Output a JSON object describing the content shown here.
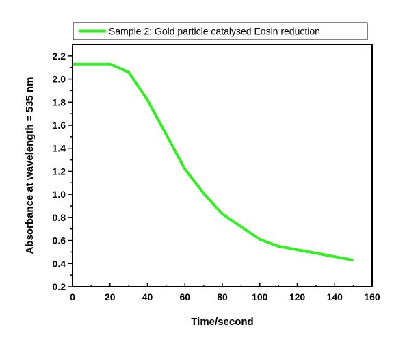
{
  "chart_data": {
    "type": "line",
    "xlabel": "Time/second",
    "ylabel": "Absorbance at wavelength = 535 nm",
    "xlim": [
      0,
      160
    ],
    "ylim": [
      0.2,
      2.3
    ],
    "xticks": [
      0,
      20,
      40,
      60,
      80,
      100,
      120,
      140,
      160
    ],
    "yticks": [
      0.2,
      0.4,
      0.6,
      0.8,
      1.0,
      1.2,
      1.4,
      1.6,
      1.8,
      2.0,
      2.2
    ],
    "xtick_labels": [
      "0",
      "20",
      "40",
      "60",
      "80",
      "100",
      "120",
      "140",
      "160"
    ],
    "ytick_labels": [
      "0.2",
      "0.4",
      "0.6",
      "0.8",
      "1.0",
      "1.2",
      "1.4",
      "1.6",
      "1.8",
      "2.0",
      "2.2"
    ],
    "grid": false,
    "legend_position": "top",
    "series": [
      {
        "name": "Sample 2: Gold particle catalysed Eosin reduction",
        "color": "#33ee22",
        "x": [
          0,
          10,
          20,
          30,
          40,
          50,
          60,
          70,
          80,
          90,
          100,
          110,
          120,
          130,
          140,
          150
        ],
        "y": [
          2.13,
          2.13,
          2.13,
          2.06,
          1.82,
          1.52,
          1.22,
          1.01,
          0.83,
          0.72,
          0.61,
          0.55,
          0.52,
          0.49,
          0.46,
          0.43
        ]
      }
    ]
  }
}
